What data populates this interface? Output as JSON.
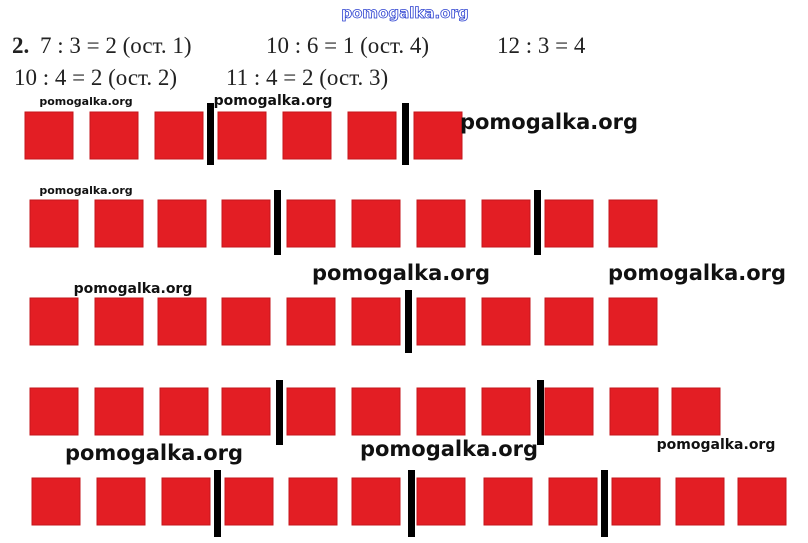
{
  "header": {
    "watermark": "pomogalka.org"
  },
  "task": {
    "number": "2.",
    "equations": [
      "7 : 3 = 2 (ост. 1)",
      "10 : 6 = 1 (ост. 4)",
      "12 : 3 = 4",
      "10 : 4 = 2 (ост. 2)",
      "11 : 4 = 2 (ост. 3)"
    ]
  },
  "watermarks": [
    "pomogalka.org",
    "pomogalka.org",
    "pomogalka.org",
    "pomogalka.org",
    "pomogalka.org",
    "pomogalka.org",
    "pomogalka.org",
    "pomogalka.org",
    "pomogalka.org",
    "pomogalka.org"
  ]
}
